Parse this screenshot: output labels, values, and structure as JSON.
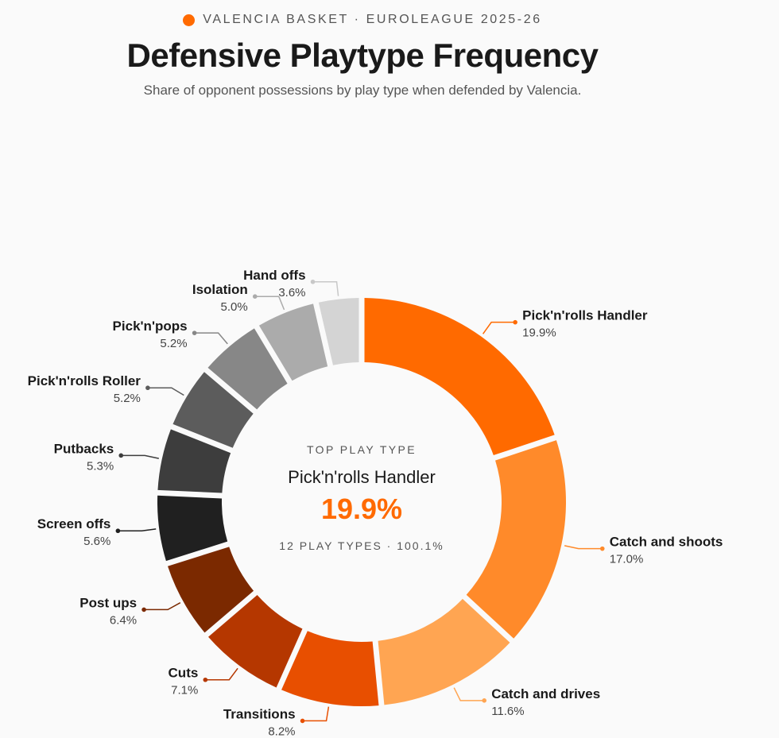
{
  "header": {
    "kicker": "VALENCIA BASKET · EUROLEAGUE 2025-26",
    "title": "Defensive Playtype Frequency",
    "subtitle": "Share of opponent possessions by play type when defended by Valencia."
  },
  "center": {
    "caption": "TOP PLAY TYPE",
    "name": "Pick'n'rolls Handler",
    "value": "19.9%",
    "footer": "12 PLAY TYPES · 100.1%"
  },
  "colors": {
    "accent": "#ff6a00",
    "kicker_dot": "#ff6a00"
  },
  "chart_data": {
    "type": "pie",
    "variant": "donut",
    "total": 100.1,
    "slices": [
      {
        "label": "Pick'n'rolls Handler",
        "value": 19.9,
        "display": "19.9%",
        "color": "#ff6a00"
      },
      {
        "label": "Catch and shoots",
        "value": 17.0,
        "display": "17.0%",
        "color": "#ff8a2a"
      },
      {
        "label": "Catch and drives",
        "value": 11.6,
        "display": "11.6%",
        "color": "#ffa552"
      },
      {
        "label": "Transitions",
        "value": 8.2,
        "display": "8.2%",
        "color": "#e84f00"
      },
      {
        "label": "Cuts",
        "value": 7.1,
        "display": "7.1%",
        "color": "#b53700"
      },
      {
        "label": "Post ups",
        "value": 6.4,
        "display": "6.4%",
        "color": "#7b2900"
      },
      {
        "label": "Screen offs",
        "value": 5.6,
        "display": "5.6%",
        "color": "#202020"
      },
      {
        "label": "Putbacks",
        "value": 5.3,
        "display": "5.3%",
        "color": "#3d3d3d"
      },
      {
        "label": "Pick'n'rolls Roller",
        "value": 5.2,
        "display": "5.2%",
        "color": "#5c5c5c"
      },
      {
        "label": "Pick'n'pops",
        "value": 5.2,
        "display": "5.2%",
        "color": "#878787"
      },
      {
        "label": "Isolation",
        "value": 5.0,
        "display": "5.0%",
        "color": "#ababab"
      },
      {
        "label": "Hand offs",
        "value": 3.6,
        "display": "3.6%",
        "color": "#d4d4d4"
      }
    ]
  }
}
